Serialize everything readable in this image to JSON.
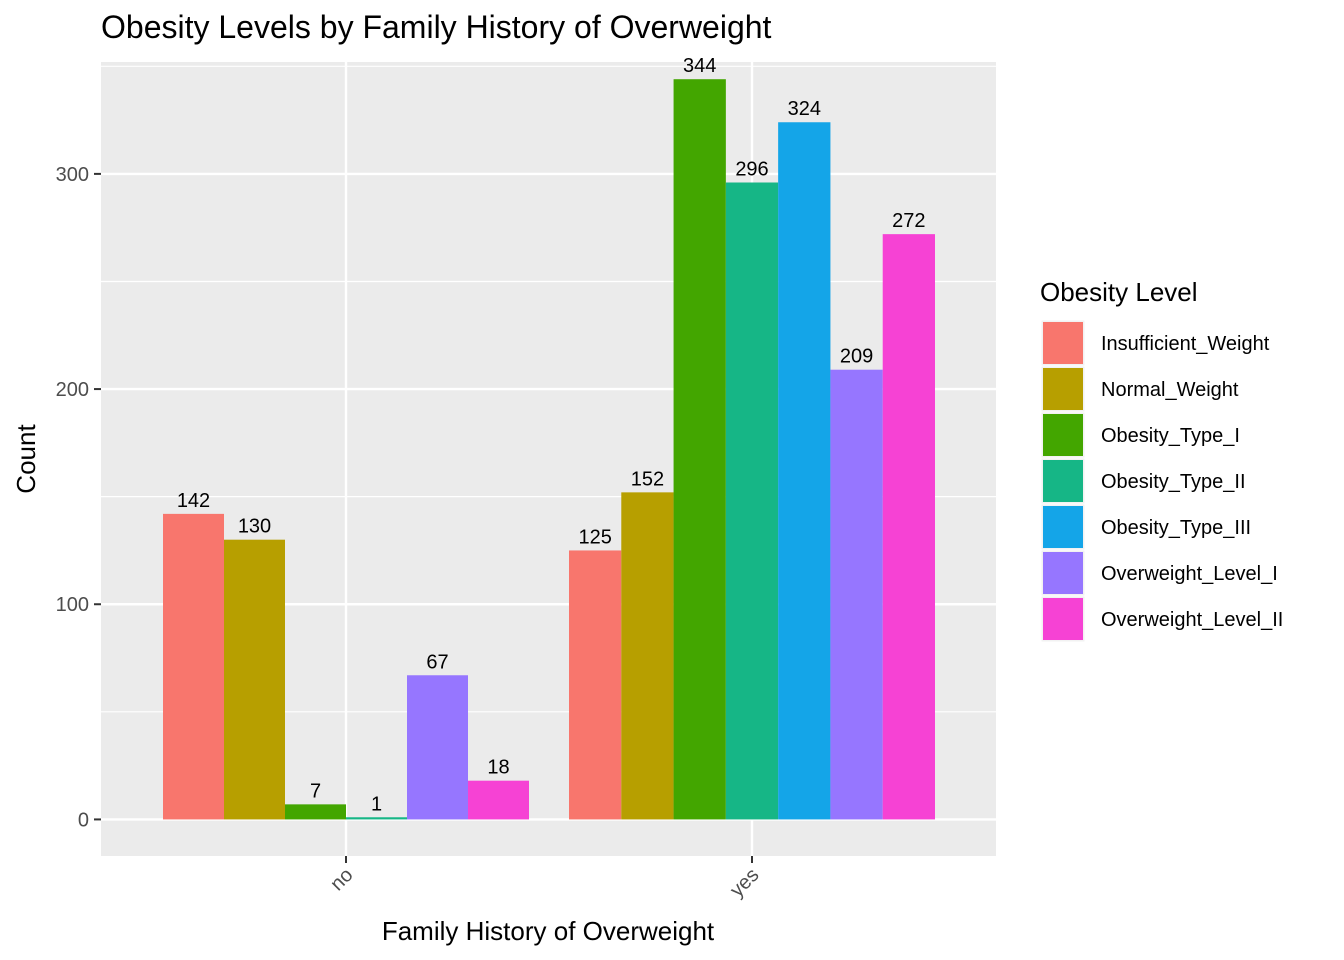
{
  "chart_data": {
    "type": "bar",
    "title": "Obesity Levels by Family History of Overweight",
    "xlabel": "Family History of Overweight",
    "ylabel": "Count",
    "categories": [
      "no",
      "yes"
    ],
    "ylim": [
      -17,
      352
    ],
    "yticks": [
      0,
      100,
      200,
      300
    ],
    "grid": true,
    "legend_title": "Obesity Level",
    "legend_position": "right",
    "series": [
      {
        "name": "Insufficient_Weight",
        "color": "#F8766D",
        "values": [
          142,
          125
        ]
      },
      {
        "name": "Normal_Weight",
        "color": "#B79F00",
        "values": [
          130,
          152
        ]
      },
      {
        "name": "Obesity_Type_I",
        "color": "#43A600",
        "values": [
          7,
          344
        ]
      },
      {
        "name": "Obesity_Type_II",
        "color": "#16B686",
        "values": [
          1,
          296
        ]
      },
      {
        "name": "Obesity_Type_III",
        "color": "#14A5E8",
        "values": [
          null,
          324
        ]
      },
      {
        "name": "Overweight_Level_I",
        "color": "#9676FF",
        "values": [
          67,
          209
        ]
      },
      {
        "name": "Overweight_Level_II",
        "color": "#F642D4",
        "values": [
          18,
          272
        ]
      }
    ]
  }
}
